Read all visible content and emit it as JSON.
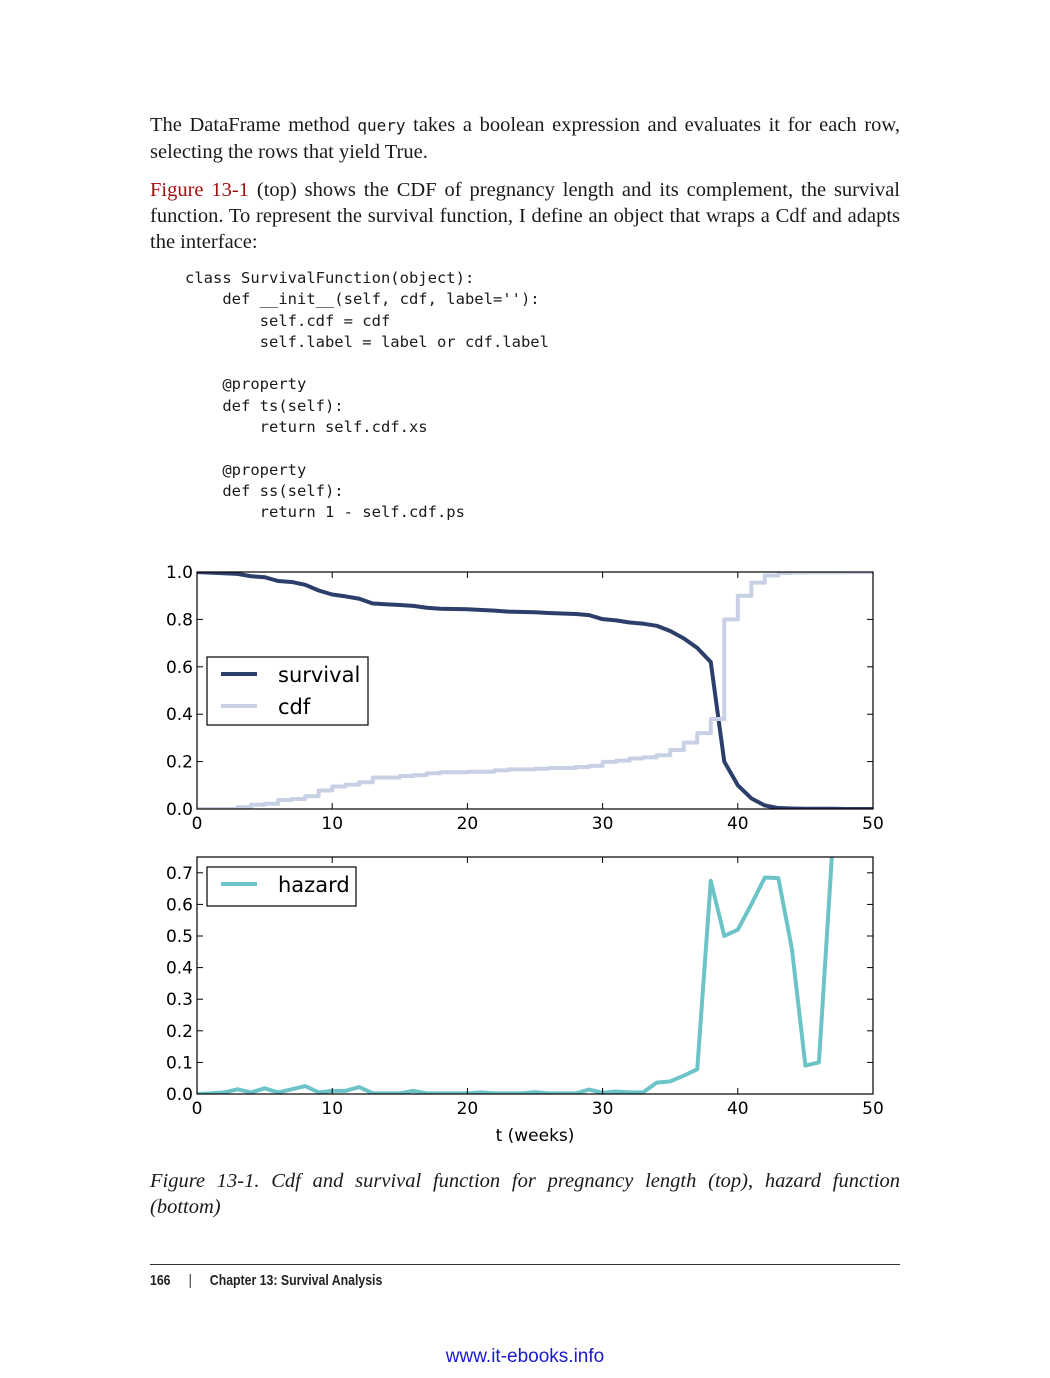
{
  "paragraphs": {
    "p1_before": "The DataFrame method ",
    "p1_code": "query",
    "p1_after": " takes a boolean expression and evaluates it for each row, selecting the rows that yield True.",
    "p2_xref": "Figure 13-1",
    "p2_after": " (top) shows the CDF of pregnancy length and its complement, the survival function. To represent the survival function, I define an object that wraps a Cdf and adapts the interface:"
  },
  "code": "class SurvivalFunction(object):\n    def __init__(self, cdf, label=''):\n        self.cdf = cdf\n        self.label = label or cdf.label\n\n    @property\n    def ts(self):\n        return self.cdf.xs\n\n    @property\n    def ss(self):\n        return 1 - self.cdf.ps",
  "chart_data": [
    {
      "type": "line",
      "xlim": [
        0,
        50
      ],
      "ylim": [
        0,
        1.0
      ],
      "xticks": [
        "0",
        "10",
        "20",
        "30",
        "40",
        "50"
      ],
      "yticks": [
        "0.0",
        "0.2",
        "0.4",
        "0.6",
        "0.8",
        "1.0"
      ],
      "legend": "upper-left",
      "grid": false,
      "series": [
        {
          "name": "survival",
          "color": "#2c3e6a",
          "step": false,
          "x": [
            0,
            3,
            4,
            5,
            6,
            7,
            8,
            9,
            10,
            11,
            12,
            13,
            15,
            16,
            17,
            18,
            20,
            22,
            23,
            25,
            26,
            28,
            29,
            30,
            31,
            32,
            33,
            34,
            35,
            36,
            37,
            38,
            39,
            40,
            41,
            42,
            43,
            44,
            45,
            46,
            47,
            48,
            50
          ],
          "y": [
            1.0,
            0.992,
            0.982,
            0.978,
            0.962,
            0.958,
            0.946,
            0.922,
            0.905,
            0.897,
            0.887,
            0.867,
            0.861,
            0.857,
            0.849,
            0.845,
            0.843,
            0.837,
            0.833,
            0.83,
            0.827,
            0.823,
            0.818,
            0.801,
            0.796,
            0.787,
            0.782,
            0.773,
            0.751,
            0.72,
            0.68,
            0.62,
            0.2,
            0.1,
            0.045,
            0.015,
            0.004,
            0.002,
            0.001,
            0.001,
            0.001,
            0.0,
            0.0
          ]
        },
        {
          "name": "cdf",
          "color": "#c7d0e4",
          "step": true,
          "x": [
            0,
            3,
            4,
            5,
            6,
            7,
            8,
            9,
            10,
            11,
            12,
            13,
            15,
            16,
            17,
            18,
            20,
            22,
            23,
            25,
            26,
            28,
            29,
            30,
            31,
            32,
            33,
            34,
            35,
            36,
            37,
            38,
            39,
            40,
            41,
            42,
            43,
            44,
            45,
            46,
            47,
            48,
            50
          ],
          "y": [
            0.0,
            0.008,
            0.018,
            0.022,
            0.038,
            0.042,
            0.054,
            0.078,
            0.095,
            0.103,
            0.113,
            0.133,
            0.139,
            0.143,
            0.151,
            0.155,
            0.157,
            0.163,
            0.167,
            0.17,
            0.173,
            0.177,
            0.182,
            0.199,
            0.204,
            0.213,
            0.218,
            0.227,
            0.249,
            0.28,
            0.32,
            0.38,
            0.8,
            0.9,
            0.955,
            0.985,
            0.996,
            0.998,
            0.999,
            0.999,
            0.999,
            1.0,
            1.0
          ]
        }
      ]
    },
    {
      "type": "line",
      "xlim": [
        0,
        50
      ],
      "ylim": [
        0,
        0.75
      ],
      "xlabel": "t (weeks)",
      "xticks": [
        "0",
        "10",
        "20",
        "30",
        "40",
        "50"
      ],
      "yticks": [
        "0.0",
        "0.1",
        "0.2",
        "0.3",
        "0.4",
        "0.5",
        "0.6",
        "0.7"
      ],
      "legend": "upper-left",
      "grid": false,
      "series": [
        {
          "name": "hazard",
          "color": "#6cc4c8",
          "x": [
            0,
            1,
            2,
            3,
            4,
            5,
            6,
            7,
            8,
            9,
            10,
            11,
            12,
            13,
            14,
            15,
            16,
            17,
            18,
            19,
            20,
            21,
            22,
            23,
            24,
            25,
            26,
            27,
            28,
            29,
            30,
            31,
            32,
            33,
            34,
            35,
            36,
            37,
            38,
            39,
            40,
            41,
            42,
            43,
            44,
            45,
            46,
            47
          ],
          "y": [
            0.0,
            0.002,
            0.005,
            0.015,
            0.005,
            0.018,
            0.005,
            0.015,
            0.025,
            0.005,
            0.01,
            0.01,
            0.022,
            0.002,
            0.002,
            0.002,
            0.01,
            0.002,
            0.002,
            0.002,
            0.002,
            0.005,
            0.002,
            0.002,
            0.002,
            0.006,
            0.002,
            0.002,
            0.002,
            0.014,
            0.004,
            0.008,
            0.005,
            0.005,
            0.036,
            0.04,
            0.058,
            0.078,
            0.675,
            0.5,
            0.52,
            0.6,
            0.685,
            0.683,
            0.46,
            0.09,
            0.1,
            0.78
          ]
        }
      ]
    }
  ],
  "caption": "Figure 13-1. Cdf and survival function for pregnancy length (top), hazard function (bottom)",
  "footer": {
    "page_number": "166",
    "separator": "|",
    "chapter": "Chapter 13: Survival Analysis"
  },
  "watermark": "www.it-ebooks.info"
}
